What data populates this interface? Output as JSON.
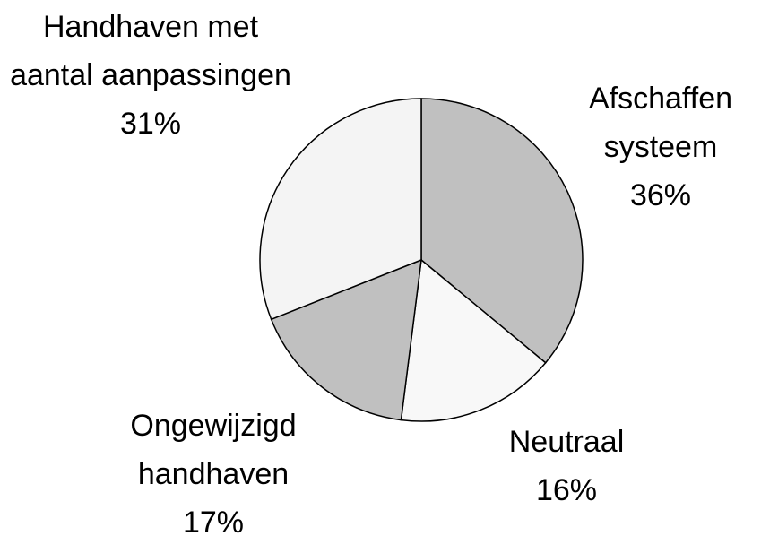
{
  "chart_data": {
    "type": "pie",
    "categories": [
      "Afschaffen systeem",
      "Neutraal",
      "Ongewijzigd handhaven",
      "Handhaven met aantal aanpassingen"
    ],
    "values": [
      36,
      16,
      17,
      31
    ],
    "value_labels": [
      "36%",
      "16%",
      "17%",
      "31%"
    ],
    "colors": [
      "#c0c0c0",
      "#f8f8f8",
      "#c0c0c0",
      "#f4f4f4"
    ]
  }
}
